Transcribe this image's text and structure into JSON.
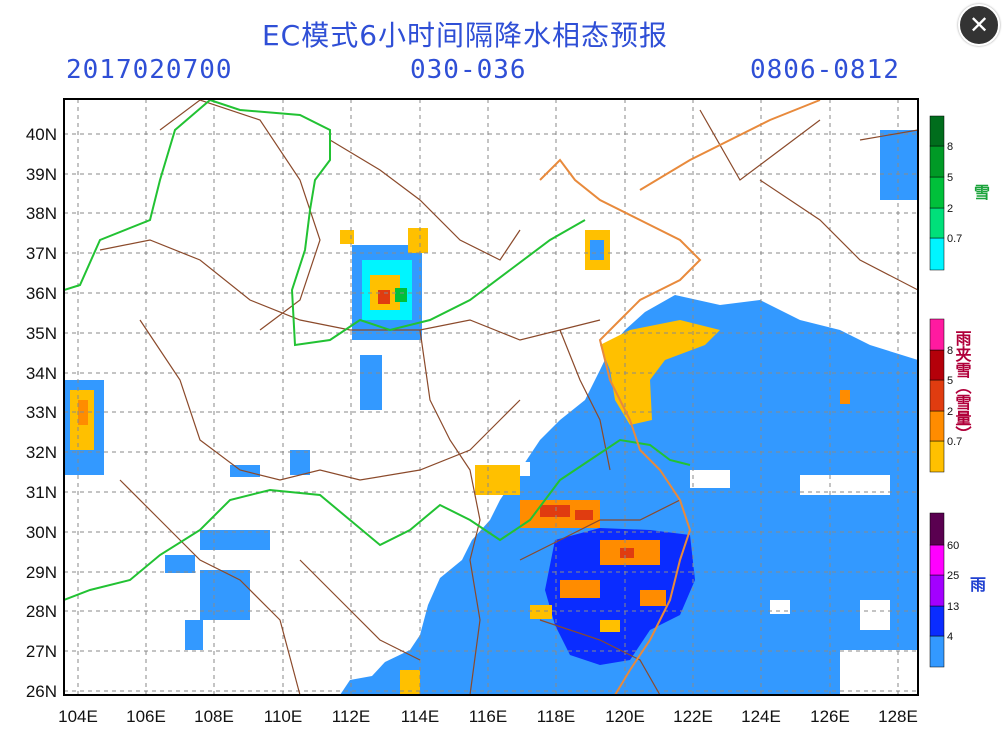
{
  "title": "EC模式6小时间隔降水相态预报",
  "header": {
    "init_time": "2017020700",
    "forecast_hours": "030-036",
    "valid_period": "0806-0812"
  },
  "close_button": {
    "label": "✕"
  },
  "map": {
    "lat_labels": [
      "40N",
      "39N",
      "38N",
      "37N",
      "36N",
      "35N",
      "34N",
      "33N",
      "32N",
      "31N",
      "30N",
      "29N",
      "28N",
      "27N",
      "26N"
    ],
    "lon_labels": [
      "104E",
      "106E",
      "108E",
      "110E",
      "112E",
      "114E",
      "116E",
      "118E",
      "120E",
      "122E",
      "124E",
      "126E",
      "128E"
    ],
    "lat_range": [
      25.9,
      40.9
    ],
    "lon_range": [
      103.6,
      128.6
    ]
  },
  "legends": [
    {
      "title": "雪",
      "title_color": "#1aa33a",
      "colors": [
        "#00f5ff",
        "#00e07a",
        "#00c03a",
        "#009a26",
        "#006d1c"
      ],
      "ticks": [
        "0.7",
        "2",
        "5",
        "8"
      ]
    },
    {
      "title": "雨夹雪（雪量）",
      "title_color": "#b0003a",
      "colors": [
        "#ffc000",
        "#ff8c00",
        "#e03c10",
        "#b4000a",
        "#ff1aa0"
      ],
      "ticks": [
        "0.7",
        "2",
        "5",
        "8"
      ]
    },
    {
      "title": "雨",
      "title_color": "#2040d0",
      "colors": [
        "#3399ff",
        "#0a2cff",
        "#a300ff",
        "#ff00ff",
        "#5a0050"
      ],
      "ticks": [
        "4",
        "13",
        "25",
        "60"
      ]
    }
  ]
}
